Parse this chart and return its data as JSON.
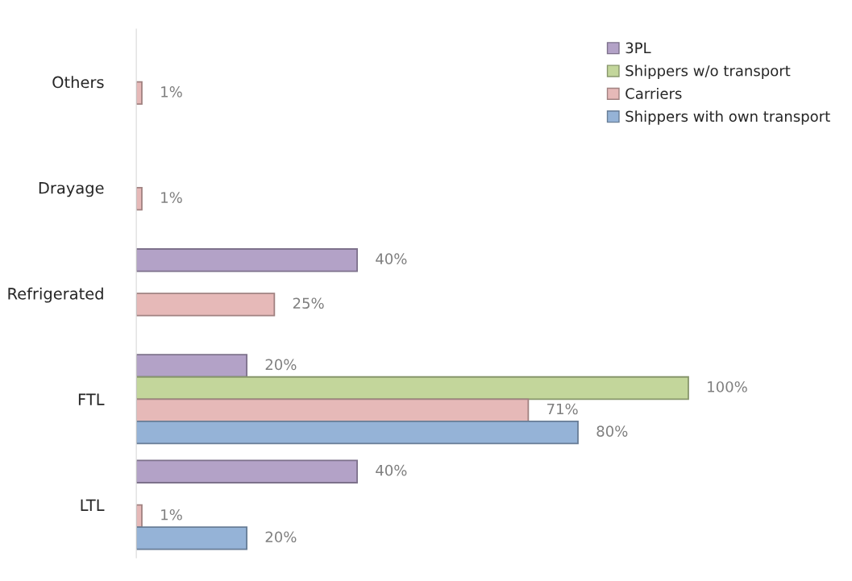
{
  "chart_data": {
    "type": "bar",
    "orientation": "horizontal",
    "categories": [
      "Others",
      "Drayage",
      "Refrigerated",
      "FTL",
      "LTL"
    ],
    "series": [
      {
        "name": "3PL",
        "color": "#b3a2c7",
        "values": [
          null,
          null,
          40,
          20,
          40
        ],
        "value_labels": [
          null,
          null,
          "40%",
          "20%",
          "40%"
        ]
      },
      {
        "name": "Shippers w/o transport",
        "color": "#c3d69b",
        "values": [
          null,
          null,
          null,
          100,
          null
        ],
        "value_labels": [
          null,
          null,
          null,
          "100%",
          null
        ]
      },
      {
        "name": "Carriers",
        "color": "#e6b9b8",
        "values": [
          1,
          1,
          25,
          71,
          1
        ],
        "value_labels": [
          "1%",
          "1%",
          "25%",
          "71%",
          "1%"
        ]
      },
      {
        "name": "Shippers with own transport",
        "color": "#95b3d7",
        "values": [
          null,
          null,
          null,
          80,
          20
        ],
        "value_labels": [
          null,
          null,
          null,
          "80%",
          "20%"
        ]
      }
    ],
    "tick_labels": "y",
    "grid": false,
    "legend": "top right"
  }
}
